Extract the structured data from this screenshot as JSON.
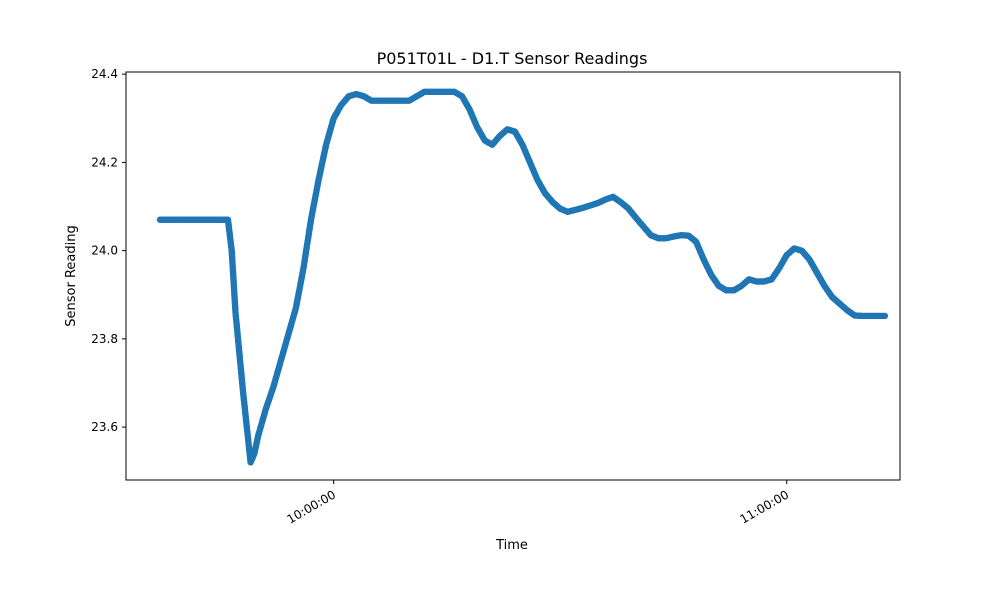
{
  "chart_data": {
    "type": "scatter",
    "title": "P051T01L - D1.T Sensor Readings",
    "xlabel": "Time",
    "ylabel": "Sensor Reading",
    "xlim": [
      "09:32:30",
      "11:15:00"
    ],
    "ylim": [
      23.48,
      24.405
    ],
    "x_ticks": [
      "10:00:00",
      "11:00:00"
    ],
    "y_ticks": [
      "23.6",
      "23.8",
      "24.0",
      "24.2",
      "24.4"
    ],
    "grid": false,
    "marker_color": "#1f77b4",
    "series": [
      {
        "x": [
          "09:37:00",
          "09:39:00",
          "09:41:00",
          "09:43:00",
          "09:45:00",
          "09:46:00",
          "09:46:30",
          "09:47:00",
          "09:48:00",
          "09:49:00",
          "09:49:30",
          "09:50:00",
          "09:51:00",
          "09:52:00",
          "09:53:00",
          "09:54:00",
          "09:55:00",
          "09:56:00",
          "09:57:00",
          "09:58:00",
          "09:59:00",
          "10:00:00",
          "10:01:00",
          "10:02:00",
          "10:03:00",
          "10:04:00",
          "10:05:00",
          "10:06:00",
          "10:08:00",
          "10:10:00",
          "10:12:00",
          "10:14:00",
          "10:16:00",
          "10:17:00",
          "10:18:00",
          "10:19:00",
          "10:20:00",
          "10:21:00",
          "10:22:00",
          "10:23:00",
          "10:24:00",
          "10:25:00",
          "10:26:00",
          "10:27:00",
          "10:28:00",
          "10:29:00",
          "10:30:00",
          "10:31:00",
          "10:33:00",
          "10:35:00",
          "10:36:00",
          "10:37:00",
          "10:38:00",
          "10:39:00",
          "10:40:00",
          "10:41:00",
          "10:42:00",
          "10:43:00",
          "10:44:00",
          "10:45:00",
          "10:46:00",
          "10:47:00",
          "10:48:00",
          "10:49:00",
          "10:50:00",
          "10:51:00",
          "10:52:00",
          "10:53:00",
          "10:54:00",
          "10:55:00",
          "10:56:00",
          "10:57:00",
          "10:58:00",
          "10:59:00",
          "11:00:00",
          "11:01:00",
          "11:02:00",
          "11:03:00",
          "11:04:00",
          "11:05:00",
          "11:06:00",
          "11:07:00",
          "11:08:00",
          "11:09:00",
          "11:10:00",
          "11:11:00",
          "11:12:00",
          "11:13:00"
        ],
        "y": [
          24.07,
          24.07,
          24.07,
          24.07,
          24.07,
          24.07,
          24.0,
          23.86,
          23.68,
          23.52,
          23.54,
          23.58,
          23.64,
          23.69,
          23.75,
          23.81,
          23.87,
          23.96,
          24.07,
          24.16,
          24.24,
          24.3,
          24.33,
          24.35,
          24.355,
          24.35,
          24.34,
          24.34,
          24.34,
          24.34,
          24.36,
          24.36,
          24.36,
          24.35,
          24.32,
          24.28,
          24.25,
          24.24,
          24.26,
          24.275,
          24.27,
          24.24,
          24.2,
          24.16,
          24.13,
          24.11,
          24.095,
          24.088,
          24.097,
          24.108,
          24.116,
          24.122,
          24.11,
          24.096,
          24.075,
          24.055,
          24.035,
          24.028,
          24.028,
          24.032,
          24.035,
          24.034,
          24.02,
          23.98,
          23.945,
          23.92,
          23.91,
          23.91,
          23.92,
          23.935,
          23.93,
          23.93,
          23.935,
          23.96,
          23.99,
          24.005,
          24.0,
          23.98,
          23.95,
          23.92,
          23.895,
          23.88,
          23.865,
          23.853,
          23.852,
          23.852,
          23.852,
          23.852
        ]
      }
    ]
  }
}
